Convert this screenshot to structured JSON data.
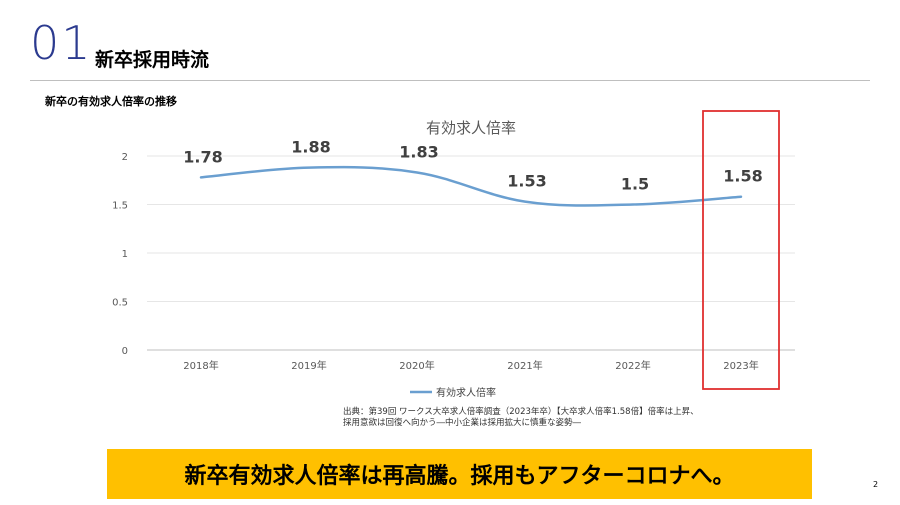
{
  "header": {
    "number": "01",
    "title": "新卒採用時流"
  },
  "section_heading": "新卒の有効求人倍率の推移",
  "chart_data": {
    "type": "line",
    "title": "有効求人倍率",
    "categories": [
      "2018年",
      "2019年",
      "2020年",
      "2021年",
      "2022年",
      "2023年"
    ],
    "series": [
      {
        "name": "有効求人倍率",
        "values": [
          1.78,
          1.88,
          1.83,
          1.53,
          1.5,
          1.58
        ],
        "color": "#6a9fd0"
      }
    ],
    "data_labels": [
      "1.78",
      "1.88",
      "1.83",
      "1.53",
      "1.5",
      "1.58"
    ],
    "y_ticks": [
      "0",
      "0.5",
      "1",
      "1.5",
      "2"
    ],
    "ylim": [
      0,
      2
    ],
    "grid": true,
    "legend_position": "bottom",
    "highlight": {
      "category": "2023年",
      "color": "#e03030"
    }
  },
  "source": {
    "line1": "出典：第39回 ワークス大卒求人倍率調査（2023年卒）【大卒求人倍率1.58倍】倍率は上昇、",
    "line2": "採用意欲は回復へ向かう―中小企業は採用拡大に慎重な姿勢―"
  },
  "banner": {
    "text": "新卒有効求人倍率は再高騰。採用もアフターコロナへ。",
    "color": "#ffc000"
  },
  "page_number": "2"
}
